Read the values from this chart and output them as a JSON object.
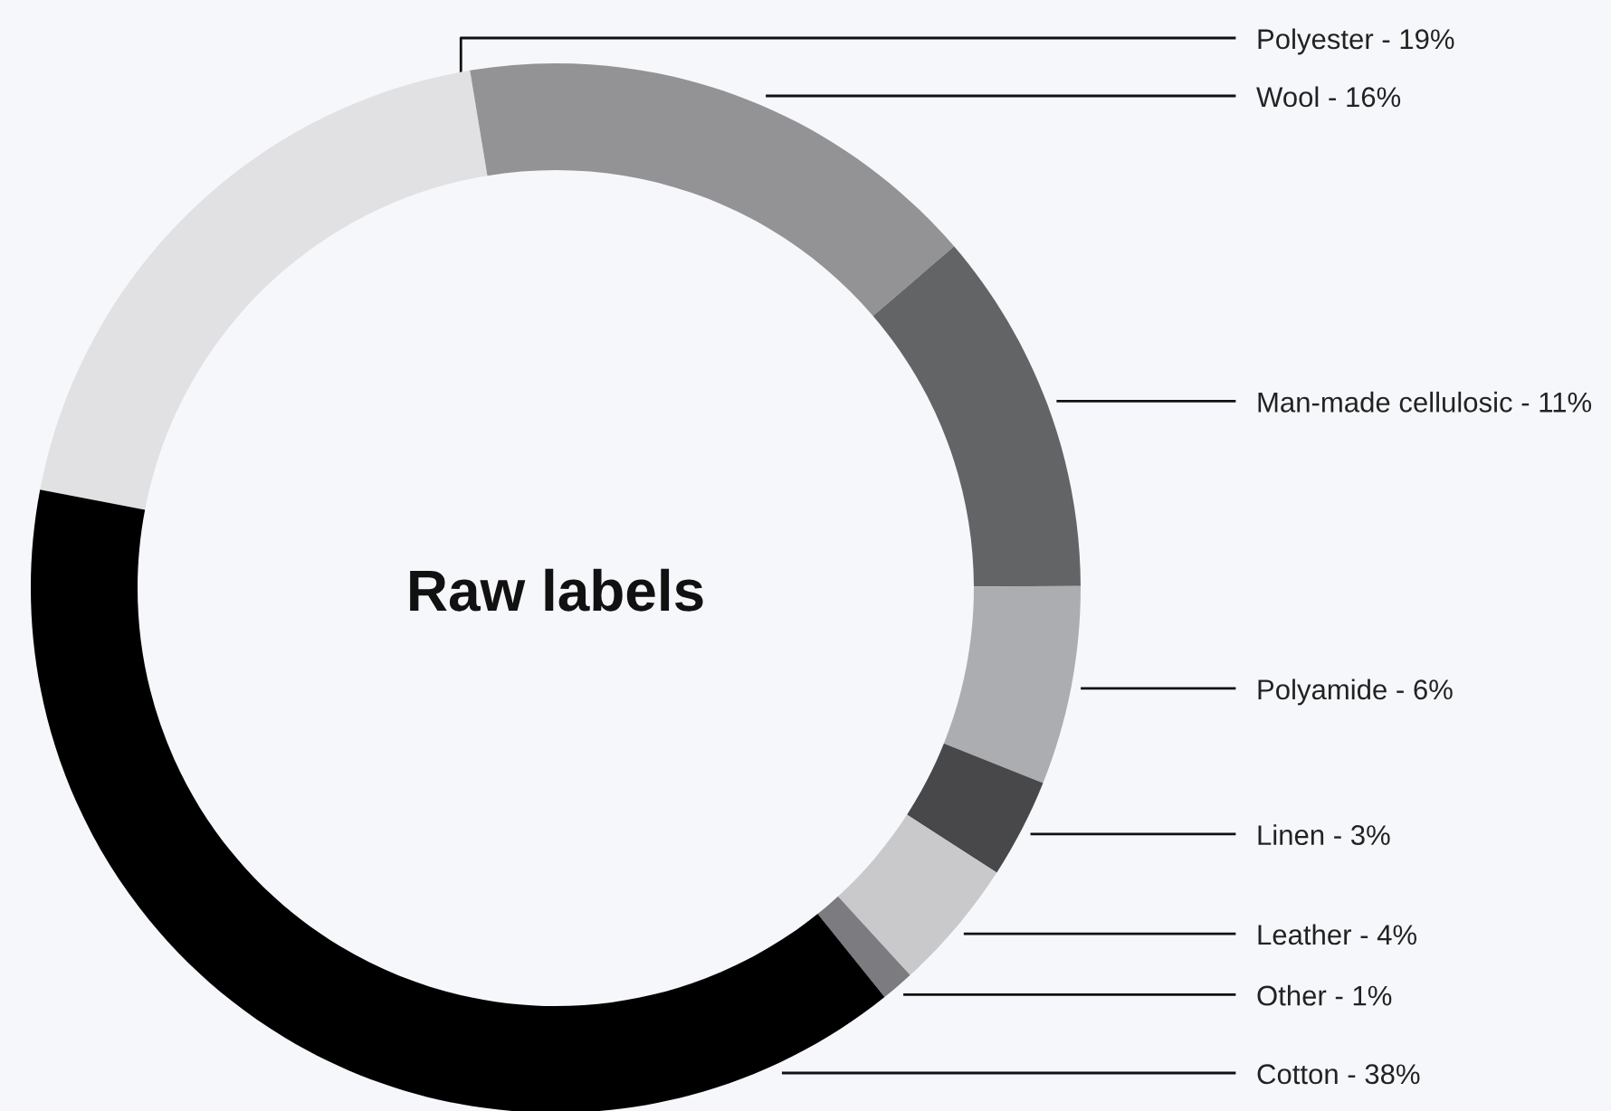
{
  "chart_data": {
    "type": "donut",
    "title": "Raw labels",
    "categories": [
      "Polyester",
      "Wool",
      "Man-made cellulosic",
      "Polyamide",
      "Linen",
      "Leather",
      "Other",
      "Cotton"
    ],
    "values": [
      19,
      16,
      11,
      6,
      3,
      4,
      1,
      38
    ],
    "value_labels": [
      "19%",
      "16%",
      "11%",
      "6%",
      "3%",
      "4%",
      "1%",
      "38%"
    ],
    "colors": [
      "#e1e1e3",
      "#939396",
      "#636466",
      "#acadb0",
      "#48484a",
      "#c9c9cb",
      "#7c7c80",
      "#000000"
    ]
  }
}
